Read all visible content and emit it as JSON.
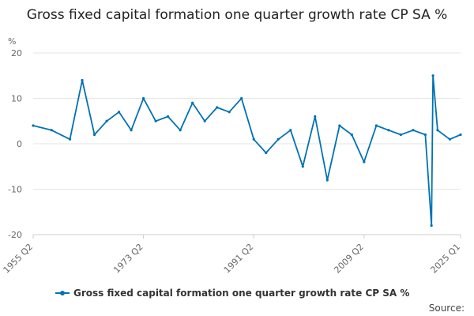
{
  "chart_data": {
    "type": "line",
    "title": "Gross fixed capital formation one quarter growth rate CP SA %",
    "ylabel": "%",
    "xlabel": "",
    "ylim": [
      -20,
      20
    ],
    "y_ticks": [
      "20",
      "10",
      "0",
      "-10",
      "-20"
    ],
    "x_tick_labels": [
      "1955 Q2",
      "1973 Q2",
      "1991 Q2",
      "2009 Q2",
      "2025 Q1"
    ],
    "series_color": "#0072B2",
    "grid": "horizontal",
    "legend_position": "bottom",
    "series": [
      {
        "name": "Gross fixed capital formation one quarter growth rate CP SA %",
        "x": [
          "1955 Q2",
          "1958 Q2",
          "1961 Q2",
          "1963 Q2",
          "1965 Q2",
          "1967 Q2",
          "1969 Q2",
          "1971 Q2",
          "1973 Q2",
          "1975 Q2",
          "1977 Q2",
          "1979 Q2",
          "1981 Q2",
          "1983 Q2",
          "1985 Q2",
          "1987 Q2",
          "1989 Q2",
          "1991 Q2",
          "1993 Q2",
          "1995 Q2",
          "1997 Q2",
          "1999 Q2",
          "2001 Q2",
          "2003 Q2",
          "2005 Q2",
          "2007 Q2",
          "2009 Q2",
          "2011 Q2",
          "2013 Q2",
          "2015 Q2",
          "2017 Q2",
          "2019 Q2",
          "2020 Q2",
          "2020 Q3",
          "2021 Q2",
          "2023 Q2",
          "2025 Q1"
        ],
        "values": [
          4,
          3,
          1,
          14,
          2,
          5,
          7,
          3,
          10,
          5,
          6,
          3,
          9,
          5,
          8,
          7,
          10,
          1,
          -2,
          1,
          3,
          -5,
          6,
          -8,
          4,
          2,
          -4,
          4,
          3,
          2,
          3,
          2,
          -18,
          15,
          3,
          1,
          2
        ]
      }
    ],
    "legend_label": "Gross fixed capital formation one quarter growth rate CP SA %",
    "source_label": "Source:"
  }
}
